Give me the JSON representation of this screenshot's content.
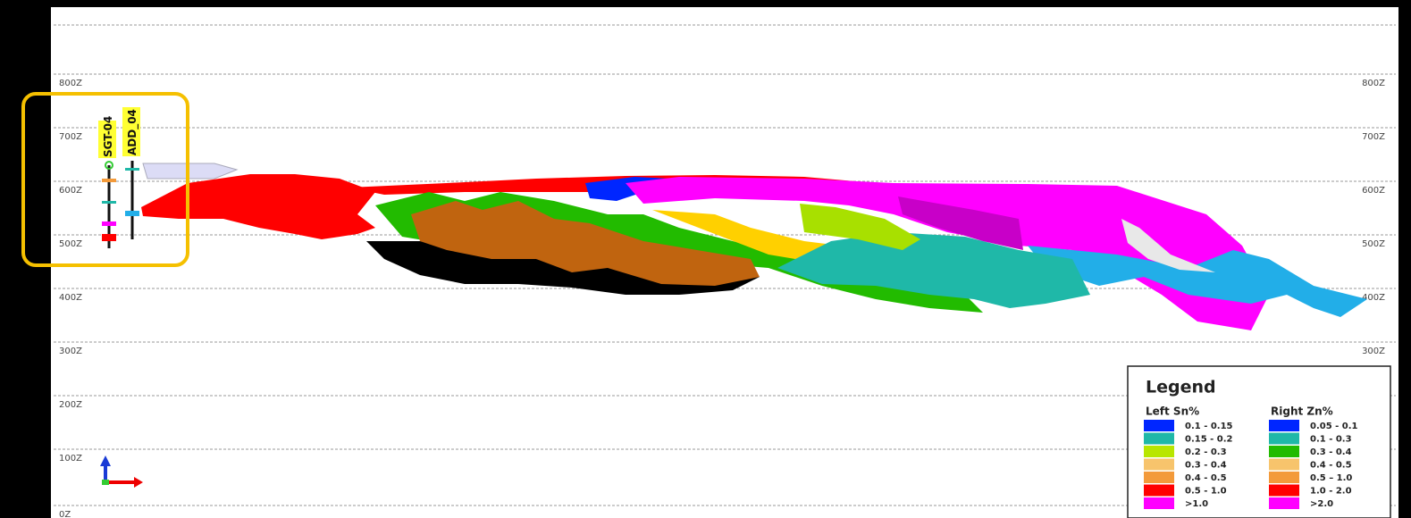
{
  "section": {
    "elevations": [
      "800Z",
      "700Z",
      "600Z",
      "500Z",
      "400Z",
      "300Z",
      "200Z",
      "100Z",
      "0Z"
    ],
    "drillholes": [
      "SGT-04",
      "ADD_04"
    ]
  },
  "legend": {
    "title": "Legend",
    "columns": [
      {
        "heading": "Left Sn%",
        "items": [
          {
            "label": "0.1  - 0.15",
            "color": "#0026ff"
          },
          {
            "label": "0.15 - 0.2",
            "color": "#1fb8a8"
          },
          {
            "label": "0.2  - 0.3",
            "color": "#b8e600"
          },
          {
            "label": "0.3  - 0.4",
            "color": "#f7c46c"
          },
          {
            "label": "0.4  - 0.5",
            "color": "#f39a3a"
          },
          {
            "label": "0.5  - 1.0",
            "color": "#ff0000"
          },
          {
            "label": ">1.0",
            "color": "#ff00ff"
          }
        ]
      },
      {
        "heading": "Right Zn%",
        "items": [
          {
            "label": "0.05  - 0.1",
            "color": "#0026ff"
          },
          {
            "label": "0.1 - 0.3",
            "color": "#1fb8a8"
          },
          {
            "label": "0.3  - 0.4",
            "color": "#22bb00"
          },
          {
            "label": "0.4  - 0.5",
            "color": "#f7c46c"
          },
          {
            "label": "0.5  – 1.0",
            "color": "#f39a3a"
          },
          {
            "label": "1.0  - 2.0",
            "color": "#ff0000"
          },
          {
            "label": ">2.0",
            "color": "#ff00ff"
          }
        ]
      }
    ]
  }
}
